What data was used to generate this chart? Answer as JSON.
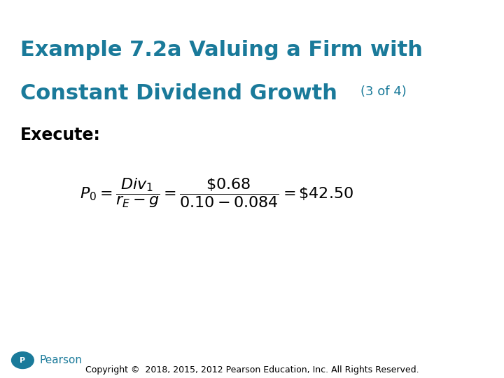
{
  "title_line1": "Example 7.2a Valuing a Firm with",
  "title_line2": "Constant Dividend Growth",
  "title_suffix": "(3 of 4)",
  "title_color": "#1a7a9a",
  "title_fontsize": 22,
  "title_suffix_fontsize": 13,
  "section_label": "Execute:",
  "section_fontsize": 17,
  "formula_fontsize": 16,
  "copyright_text": "Copyright ©  2018, 2015, 2012 Pearson Education, Inc. All Rights Reserved.",
  "copyright_fontsize": 9,
  "pearson_text": "Pearson",
  "pearson_color": "#1a7a9a",
  "bg_color": "#ffffff",
  "text_color": "#000000"
}
